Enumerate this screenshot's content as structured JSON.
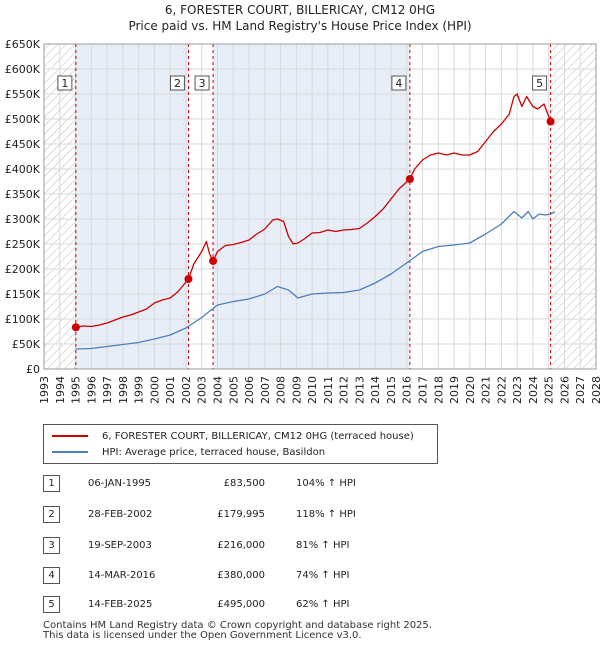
{
  "title": "6, FORESTER COURT, BILLERICAY, CM12 0HG",
  "subtitle": "Price paid vs. HM Land Registry's House Price Index (HPI)",
  "chart_data": {
    "type": "line",
    "xlim": [
      1993,
      2028
    ],
    "ylim": [
      0,
      650000
    ],
    "y_ticks": [
      0,
      50000,
      100000,
      150000,
      200000,
      250000,
      300000,
      350000,
      400000,
      450000,
      500000,
      550000,
      600000,
      650000
    ],
    "y_tick_labels": [
      "£0",
      "£50K",
      "£100K",
      "£150K",
      "£200K",
      "£250K",
      "£300K",
      "£350K",
      "£400K",
      "£450K",
      "£500K",
      "£550K",
      "£600K",
      "£650K"
    ],
    "x_ticks": [
      1993,
      1994,
      1995,
      1996,
      1997,
      1998,
      1999,
      2000,
      2001,
      2002,
      2003,
      2004,
      2005,
      2006,
      2007,
      2008,
      2009,
      2010,
      2011,
      2012,
      2013,
      2014,
      2015,
      2016,
      2017,
      2018,
      2019,
      2020,
      2021,
      2022,
      2023,
      2024,
      2025,
      2026,
      2027,
      2028
    ],
    "x_tick_labels": [
      "1993",
      "1994",
      "1995",
      "1996",
      "1997",
      "1998",
      "1999",
      "2000",
      "2001",
      "2002",
      "2003",
      "2004",
      "2005",
      "2006",
      "2007",
      "2008",
      "2009",
      "2010",
      "2011",
      "2012",
      "2013",
      "2014",
      "2015",
      "2016",
      "2017",
      "2018",
      "2019",
      "2020",
      "2021",
      "2022",
      "2023",
      "2024",
      "2025",
      "2026",
      "2027",
      "2028"
    ],
    "hatched_regions": [
      [
        1993,
        1995.02
      ],
      [
        2025.12,
        2028
      ]
    ],
    "shaded_regions": [
      [
        1995.02,
        2002.16
      ],
      [
        2003.72,
        2016.2
      ]
    ],
    "series": [
      {
        "name": "6, FORESTER COURT, BILLERICAY, CM12 0HG (terraced house)",
        "color": "#cc0000",
        "x": [
          1995.02,
          1995.5,
          1996,
          1996.5,
          1997,
          1997.5,
          1998,
          1998.5,
          1999,
          1999.5,
          2000,
          2000.5,
          2001,
          2001.5,
          2002.16,
          2002.5,
          2003,
          2003.3,
          2003.5,
          2003.72,
          2004,
          2004.5,
          2005,
          2005.5,
          2006,
          2006.5,
          2007,
          2007.5,
          2007.8,
          2008.2,
          2008.5,
          2008.8,
          2009.1,
          2009.5,
          2010,
          2010.5,
          2011,
          2011.5,
          2012,
          2012.5,
          2013,
          2013.5,
          2014,
          2014.5,
          2015,
          2015.5,
          2016.2,
          2016.5,
          2017,
          2017.5,
          2018,
          2018.5,
          2019,
          2019.5,
          2020,
          2020.5,
          2021,
          2021.5,
          2022,
          2022.5,
          2022.8,
          2023,
          2023.3,
          2023.6,
          2024,
          2024.3,
          2024.7,
          2025.12,
          2025.3
        ],
        "y": [
          83500,
          86000,
          85000,
          88000,
          92000,
          98000,
          104000,
          108000,
          114000,
          120000,
          132000,
          138000,
          142000,
          155000,
          179995,
          210000,
          235000,
          255000,
          230000,
          216000,
          235000,
          247000,
          249000,
          253000,
          258000,
          270000,
          280000,
          298000,
          300000,
          295000,
          265000,
          250000,
          252000,
          260000,
          272000,
          273000,
          278000,
          275000,
          278000,
          279000,
          281000,
          292000,
          305000,
          320000,
          340000,
          360000,
          380000,
          400000,
          418000,
          428000,
          432000,
          428000,
          432000,
          428000,
          428000,
          435000,
          455000,
          475000,
          490000,
          510000,
          545000,
          550000,
          525000,
          545000,
          525000,
          520000,
          530000,
          495000,
          500000
        ]
      },
      {
        "name": "HPI: Average price, terraced house, Basildon",
        "color": "#4d7fbd",
        "x": [
          1995.02,
          1996,
          1997,
          1998,
          1999,
          2000,
          2001,
          2002,
          2003,
          2004,
          2005,
          2006,
          2007,
          2007.8,
          2008.5,
          2009.1,
          2010,
          2011,
          2012,
          2013,
          2014,
          2015,
          2016,
          2017,
          2018,
          2019,
          2020,
          2021,
          2022,
          2022.8,
          2023.3,
          2023.7,
          2024,
          2024.4,
          2024.8,
          2025.12,
          2025.4
        ],
        "y": [
          40000,
          41000,
          45000,
          49000,
          53000,
          60000,
          68000,
          82000,
          103000,
          128000,
          135000,
          140000,
          150000,
          165000,
          158000,
          142000,
          150000,
          152000,
          153000,
          158000,
          172000,
          190000,
          212000,
          235000,
          245000,
          248000,
          252000,
          270000,
          290000,
          315000,
          302000,
          315000,
          300000,
          310000,
          308000,
          310000,
          314000
        ]
      }
    ],
    "sales": [
      {
        "label": "1",
        "x": 1995.02,
        "y": 83500
      },
      {
        "label": "2",
        "x": 2002.16,
        "y": 179995
      },
      {
        "label": "3",
        "x": 2003.72,
        "y": 216000
      },
      {
        "label": "4",
        "x": 2016.2,
        "y": 380000
      },
      {
        "label": "5",
        "x": 2025.12,
        "y": 495000
      }
    ]
  },
  "legend": {
    "property": "6, FORESTER COURT, BILLERICAY, CM12 0HG (terraced house)",
    "hpi": "HPI: Average price, terraced house, Basildon"
  },
  "table": [
    {
      "num": "1",
      "date": "06-JAN-1995",
      "price": "£83,500",
      "hpi": "104% ↑ HPI"
    },
    {
      "num": "2",
      "date": "28-FEB-2002",
      "price": "£179,995",
      "hpi": "118% ↑ HPI"
    },
    {
      "num": "3",
      "date": "19-SEP-2003",
      "price": "£216,000",
      "hpi": "81% ↑ HPI"
    },
    {
      "num": "4",
      "date": "14-MAR-2016",
      "price": "£380,000",
      "hpi": "74% ↑ HPI"
    },
    {
      "num": "5",
      "date": "14-FEB-2025",
      "price": "£495,000",
      "hpi": "62% ↑ HPI"
    }
  ],
  "footer": {
    "line1": "Contains HM Land Registry data © Crown copyright and database right 2025.",
    "line2": "This data is licensed under the Open Government Licence v3.0."
  },
  "colors": {
    "property_line": "#cc0000",
    "hpi_line": "#4d7fbd",
    "shade": "#e8eef8",
    "grid": "#d9d9d9"
  }
}
